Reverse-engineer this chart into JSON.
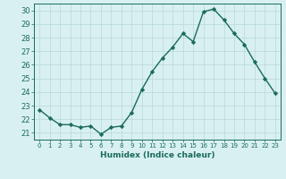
{
  "x": [
    0,
    1,
    2,
    3,
    4,
    5,
    6,
    7,
    8,
    9,
    10,
    11,
    12,
    13,
    14,
    15,
    16,
    17,
    18,
    19,
    20,
    21,
    22,
    23
  ],
  "y": [
    22.7,
    22.1,
    21.6,
    21.6,
    21.4,
    21.5,
    20.9,
    21.4,
    21.5,
    22.5,
    24.2,
    25.5,
    26.5,
    27.3,
    28.3,
    27.7,
    29.9,
    30.1,
    29.3,
    28.3,
    27.5,
    26.2,
    25.0,
    23.9
  ],
  "line_color": "#1a6b5a",
  "marker": "D",
  "markersize": 2.2,
  "linewidth": 1.0,
  "bg_color": "#d8f0f0",
  "grid_color": "#b8d8d8",
  "xlabel": "Humidex (Indice chaleur)",
  "xlim": [
    -0.5,
    23.5
  ],
  "ylim": [
    20.5,
    30.5
  ],
  "yticks": [
    21,
    22,
    23,
    24,
    25,
    26,
    27,
    28,
    29,
    30
  ],
  "xticks": [
    0,
    1,
    2,
    3,
    4,
    5,
    6,
    7,
    8,
    9,
    10,
    11,
    12,
    13,
    14,
    15,
    16,
    17,
    18,
    19,
    20,
    21,
    22,
    23
  ],
  "tick_color": "#1a6b5a",
  "label_color": "#1a6b5a",
  "xlabel_fontsize": 6.5,
  "ytick_fontsize": 6.0,
  "xtick_fontsize": 5.0
}
